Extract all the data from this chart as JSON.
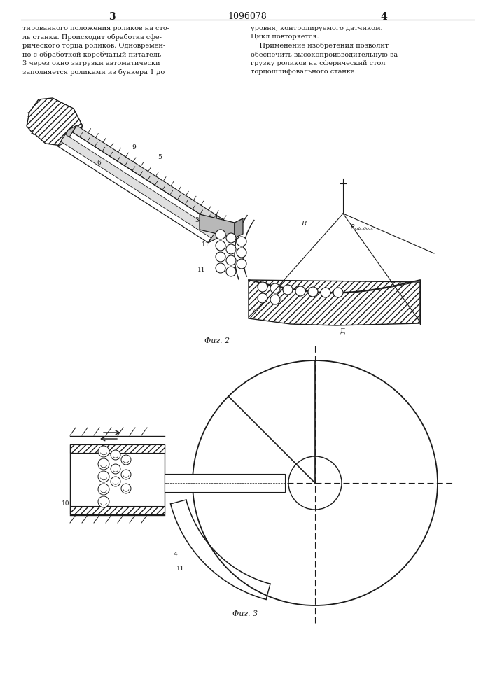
{
  "page_num_left": "3",
  "page_num_right": "4",
  "patent_number": "1096078",
  "text_left": "тированного положения роликов на сто-\nль станка. Происходит обработка сфе-\nрического торца роликов. Одновремен-\nно с обработкой коробчатый питатель\n3 через окно загрузки автоматически\nзаполняется роликами из бункера 1 до",
  "text_right": "уровня, контролируемого датчиком.\nЦикл повторяется.\n    Применение изобретения позволит\nобеспечить высокопроизводительную за-\nгрузку роликов на сферический стол\nторцошлифовального станка.",
  "fig2_label": "Фиг. 2",
  "fig3_label": "Фиг. 3",
  "line_color": "#1a1a1a",
  "text_color": "#1a1a1a"
}
